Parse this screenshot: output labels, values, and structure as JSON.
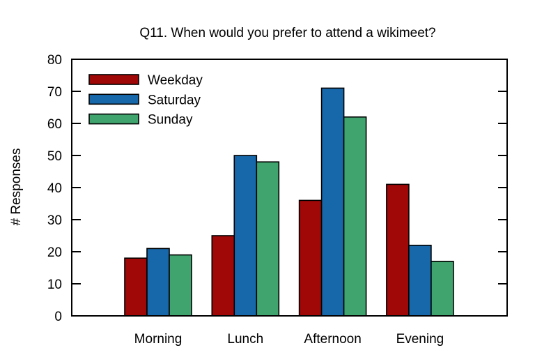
{
  "chart_data": {
    "type": "bar",
    "title": "Q11. When would you prefer to attend a wikimeet?",
    "xlabel": "",
    "ylabel": "# Responses",
    "categories": [
      "Morning",
      "Lunch",
      "Afternoon",
      "Evening"
    ],
    "series": [
      {
        "name": "Weekday",
        "color": "#a00808",
        "values": [
          18,
          25,
          36,
          41
        ]
      },
      {
        "name": "Saturday",
        "color": "#1768ab",
        "values": [
          21,
          50,
          71,
          22
        ]
      },
      {
        "name": "Sunday",
        "color": "#3fa46e",
        "values": [
          19,
          48,
          62,
          17
        ]
      }
    ],
    "ylim": [
      0,
      80
    ],
    "ytick_step": 10,
    "grid": false,
    "legend_position": "top-left",
    "frame_color": "#000000",
    "background_color": "#ffffff"
  }
}
